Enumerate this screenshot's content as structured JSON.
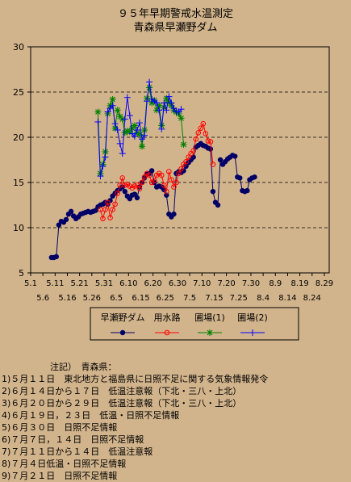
{
  "header": {
    "title": "９５年早期警戒水温測定",
    "subtitle": "青森県早瀬野ダム"
  },
  "notes": {
    "heading": "注記）　青森県：",
    "lines": [
      "1)５月１１日　東北地方と福島県に日照不足に関する気象情報発令",
      "2)６月１４日から１７日　低温注意報（下北・三八・上北）",
      "3)６月２０日から２９日　低温注意報（下北・三八・上北）",
      "4)６月１９日，２３日　低温・日照不足情報",
      "5)６月３０日　日照不足情報",
      "6)７月７日，１４日　日照不足情報",
      "7)７月１１日から１４日　低温注意報",
      "8)７月４日低温・日照不足情報",
      "9)７月２１日　日照不足情報"
    ]
  },
  "chart_data": {
    "type": "line",
    "ylim": [
      5,
      30
    ],
    "yticks": [
      "30",
      "25",
      "20",
      "15",
      "10",
      "5"
    ],
    "xticks_top": [
      "5.1",
      "5.11",
      "5.21",
      "5.31",
      "6.10",
      "6.20",
      "6.30",
      "7.10",
      "7.20",
      "7.30",
      "8.9",
      "8.19",
      "8.29"
    ],
    "xticks_bottom": [
      "5.6",
      "5.16",
      "5.26",
      "6.5",
      "6.15",
      "6.25",
      "7.5",
      "7.15",
      "7.25",
      "8.4",
      "8.14",
      "8.24"
    ],
    "grid": "horizontal dashed",
    "legend_position": "bottom",
    "series": [
      {
        "name": "早瀬野ダム",
        "color": "#000066",
        "marker": "dot",
        "points": [
          [
            8,
            6.7
          ],
          [
            9,
            6.7
          ],
          [
            10,
            6.8
          ],
          [
            11,
            10.3
          ],
          [
            12,
            10.7
          ],
          [
            13,
            10.6
          ],
          [
            14,
            10.9
          ],
          [
            15,
            11.5
          ],
          [
            16,
            11.8
          ],
          [
            17,
            11.3
          ],
          [
            18,
            11.0
          ],
          [
            19,
            11.2
          ],
          [
            20,
            11.5
          ],
          [
            21,
            11.6
          ],
          [
            22,
            11.7
          ],
          [
            23,
            11.8
          ],
          [
            24,
            11.7
          ],
          [
            25,
            11.8
          ],
          [
            26,
            11.9
          ],
          [
            27,
            12.3
          ],
          [
            28,
            12.5
          ],
          [
            29,
            12.6
          ],
          [
            30,
            12.8
          ],
          [
            31,
            12.6
          ],
          [
            32,
            13.0
          ],
          [
            33,
            13.5
          ],
          [
            34,
            13.8
          ],
          [
            35,
            14.1
          ],
          [
            36,
            14.3
          ],
          [
            37,
            14.5
          ],
          [
            38,
            14.0
          ],
          [
            39,
            13.5
          ],
          [
            40,
            13.2
          ],
          [
            41,
            13.6
          ],
          [
            42,
            13.7
          ],
          [
            43,
            13.3
          ],
          [
            44,
            14.5
          ],
          [
            45,
            15.0
          ],
          [
            46,
            15.5
          ],
          [
            47,
            15.9
          ],
          [
            48,
            16.0
          ],
          [
            49,
            16.3
          ],
          [
            50,
            15.0
          ],
          [
            51,
            14.5
          ],
          [
            52,
            14.6
          ],
          [
            53,
            14.5
          ],
          [
            54,
            14.2
          ],
          [
            55,
            13.6
          ],
          [
            56,
            11.5
          ],
          [
            57,
            11.2
          ],
          [
            58,
            11.5
          ],
          [
            59,
            16.0
          ],
          [
            60,
            16.2
          ],
          [
            61,
            16.1
          ],
          [
            62,
            16.3
          ],
          [
            63,
            16.8
          ],
          [
            64,
            17.2
          ],
          [
            65,
            17.5
          ],
          [
            66,
            17.8
          ],
          [
            67,
            18.9
          ],
          [
            68,
            19.1
          ],
          [
            69,
            19.3
          ],
          [
            70,
            19.1
          ],
          [
            71,
            19.0
          ],
          [
            72,
            18.8
          ],
          [
            73,
            18.7
          ],
          [
            74,
            14.0
          ],
          [
            75,
            12.8
          ],
          [
            76,
            12.5
          ],
          [
            77,
            17.5
          ],
          [
            78,
            17.0
          ],
          [
            79,
            17.3
          ],
          [
            80,
            17.6
          ],
          [
            81,
            17.8
          ],
          [
            82,
            18.0
          ],
          [
            83,
            17.9
          ],
          [
            84,
            15.6
          ],
          [
            85,
            15.5
          ],
          [
            86,
            14.1
          ],
          [
            87,
            14.0
          ],
          [
            88,
            14.1
          ],
          [
            89,
            15.3
          ],
          [
            90,
            15.5
          ],
          [
            91,
            15.6
          ]
        ]
      },
      {
        "name": "用水路",
        "color": "#ff0000",
        "marker": "circle",
        "points": [
          [
            28,
            12.0
          ],
          [
            29,
            11.0
          ],
          [
            30,
            12.0
          ],
          [
            31,
            12.8
          ],
          [
            32,
            11.1
          ],
          [
            33,
            12.0
          ],
          [
            34,
            12.6
          ],
          [
            35,
            13.8
          ],
          [
            36,
            14.7
          ],
          [
            37,
            15.5
          ],
          [
            38,
            14.7
          ],
          [
            39,
            14.8
          ],
          [
            40,
            14.6
          ],
          [
            41,
            14.4
          ],
          [
            42,
            14.6
          ],
          [
            43,
            14.7
          ],
          [
            44,
            14.3
          ],
          [
            45,
            15.0
          ],
          [
            46,
            15.6
          ],
          [
            47,
            16.0
          ],
          [
            48,
            15.8
          ],
          [
            49,
            15.0
          ],
          [
            50,
            15.2
          ],
          [
            51,
            15.8
          ],
          [
            52,
            16.0
          ],
          [
            53,
            15.8
          ],
          [
            54,
            14.7
          ],
          [
            55,
            14.0
          ],
          [
            56,
            16.2
          ],
          [
            57,
            15.3
          ],
          [
            58,
            14.5
          ],
          [
            59,
            15.0
          ],
          [
            60,
            16.0
          ],
          [
            61,
            16.5
          ],
          [
            62,
            17.0
          ],
          [
            63,
            17.3
          ],
          [
            64,
            17.8
          ],
          [
            65,
            18.2
          ],
          [
            66,
            18.5
          ],
          [
            67,
            19.8
          ],
          [
            68,
            20.5
          ],
          [
            69,
            21.0
          ],
          [
            70,
            21.5
          ],
          [
            71,
            20.4
          ],
          [
            72,
            19.6
          ],
          [
            73,
            19.5
          ],
          [
            74,
            17.0
          ]
        ]
      },
      {
        "name": "圃場(1)",
        "color": "#008000",
        "marker": "star",
        "points": [
          [
            27,
            22.8
          ],
          [
            28,
            16.0
          ],
          [
            29,
            17.0
          ],
          [
            30,
            18.4
          ],
          [
            31,
            22.6
          ],
          [
            32,
            23.5
          ],
          [
            33,
            24.2
          ],
          [
            34,
            21.0
          ],
          [
            35,
            23.0
          ],
          [
            36,
            22.3
          ],
          [
            37,
            22.0
          ],
          [
            38,
            20.5
          ],
          [
            39,
            20.7
          ],
          [
            40,
            20.6
          ],
          [
            41,
            21.0
          ],
          [
            42,
            21.3
          ],
          [
            43,
            20.5
          ],
          [
            44,
            20.3
          ],
          [
            45,
            19.0
          ],
          [
            46,
            20.8
          ],
          [
            47,
            24.3
          ],
          [
            48,
            25.5
          ],
          [
            49,
            23.8
          ],
          [
            50,
            24.1
          ],
          [
            51,
            23.0
          ],
          [
            52,
            23.5
          ],
          [
            53,
            21.3
          ],
          [
            54,
            23.3
          ],
          [
            55,
            24.3
          ],
          [
            56,
            23.9
          ],
          [
            57,
            23.5
          ],
          [
            58,
            23.0
          ],
          [
            59,
            22.8
          ],
          [
            60,
            22.6
          ],
          [
            61,
            22.1
          ],
          [
            62,
            19.2
          ]
        ]
      },
      {
        "name": "圃場(2)",
        "color": "#0000ff",
        "marker": "plus",
        "points": [
          [
            27,
            21.7
          ],
          [
            28,
            15.7
          ],
          [
            29,
            16.8
          ],
          [
            30,
            17.8
          ],
          [
            31,
            22.8
          ],
          [
            32,
            23.2
          ],
          [
            33,
            23.5
          ],
          [
            34,
            21.5
          ],
          [
            35,
            20.8
          ],
          [
            36,
            19.3
          ],
          [
            37,
            18.2
          ],
          [
            38,
            22.0
          ],
          [
            39,
            24.4
          ],
          [
            40,
            22.4
          ],
          [
            41,
            20.4
          ],
          [
            42,
            20.1
          ],
          [
            43,
            20.8
          ],
          [
            44,
            21.6
          ],
          [
            45,
            19.8
          ],
          [
            46,
            20.2
          ],
          [
            47,
            24.0
          ],
          [
            48,
            26.1
          ],
          [
            49,
            24.2
          ],
          [
            50,
            24.0
          ],
          [
            51,
            23.8
          ],
          [
            52,
            23.0
          ],
          [
            53,
            20.9
          ],
          [
            54,
            23.8
          ],
          [
            55,
            23.0
          ],
          [
            56,
            24.5
          ],
          [
            57,
            23.8
          ],
          [
            58,
            23.2
          ],
          [
            59,
            22.8
          ],
          [
            60,
            22.8
          ],
          [
            61,
            23.1
          ]
        ]
      }
    ]
  }
}
